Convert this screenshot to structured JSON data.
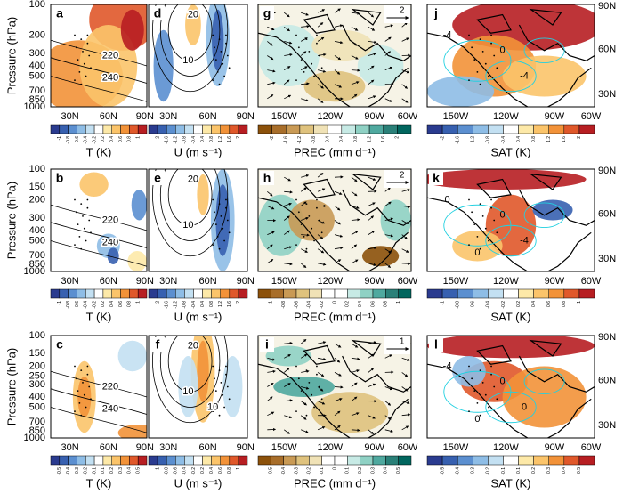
{
  "figure": {
    "y_axis_label": "Pressure (hPa)",
    "lat_ticks": [
      "30N",
      "60N",
      "90N"
    ],
    "lon_ticks": [
      "150W",
      "120W",
      "90W",
      "60W"
    ],
    "map_lat_ticks": [
      "90N",
      "60N",
      "30N"
    ],
    "rows": [
      {
        "pressure_ticks": [
          100,
          200,
          300,
          400,
          500,
          700,
          850,
          1000
        ],
        "panels": [
          {
            "letter": "a",
            "labels": [
              "220",
              "240"
            ]
          },
          {
            "letter": "d",
            "labels": [
              "20",
              "10"
            ]
          },
          {
            "letter": "g",
            "labels": [
              "2"
            ]
          },
          {
            "letter": "j",
            "labels": [
              "-4",
              "0",
              "-4"
            ]
          }
        ],
        "colorbars": [
          {
            "title": "T (K)",
            "ticks": [
              -1,
              -0.8,
              -0.6,
              -0.4,
              -0.2,
              0.2,
              0.4,
              0.6,
              0.8,
              1
            ]
          },
          {
            "title": "U (m s⁻¹)",
            "ticks": [
              -2,
              -1.6,
              -1.2,
              -0.8,
              -0.4,
              0.4,
              0.8,
              1.2,
              1.6,
              2
            ]
          },
          {
            "title": "PREC (mm d⁻¹)",
            "ticks": [
              -2,
              -1.6,
              -1.2,
              -0.8,
              -0.4,
              0.4,
              0.8,
              1.2,
              1.6,
              2
            ]
          },
          {
            "title": "SAT (K)",
            "ticks": [
              -2,
              -1.6,
              -1.2,
              -0.8,
              -0.4,
              0.4,
              0.8,
              1.2,
              1.6,
              2
            ]
          }
        ]
      },
      {
        "pressure_ticks": [
          100,
          150,
          200,
          300,
          400,
          500,
          700,
          850,
          1000
        ],
        "panels": [
          {
            "letter": "b",
            "labels": [
              "220",
              "240"
            ]
          },
          {
            "letter": "e",
            "labels": [
              "20",
              "10"
            ]
          },
          {
            "letter": "h",
            "labels": [
              "2"
            ]
          },
          {
            "letter": "k",
            "labels": [
              "0",
              "0",
              "-4",
              "0"
            ]
          }
        ],
        "colorbars": [
          {
            "title": "T (K)",
            "ticks": [
              -1,
              -0.8,
              -0.6,
              -0.4,
              -0.2,
              0.2,
              0.4,
              0.6,
              0.8,
              1
            ]
          },
          {
            "title": "U (m s⁻¹)",
            "ticks": [
              -2,
              -1.6,
              -1.2,
              -0.8,
              -0.4,
              0.4,
              0.8,
              1.2,
              1.6,
              2
            ]
          },
          {
            "title": "PREC (mm d⁻¹)",
            "ticks": [
              -1,
              -0.8,
              -0.6,
              -0.4,
              -0.2,
              0,
              0.2,
              0.4,
              0.6,
              0.8,
              1
            ]
          },
          {
            "title": "SAT (K)",
            "ticks": [
              -1,
              -0.8,
              -0.6,
              -0.4,
              -0.2,
              0.2,
              0.4,
              0.6,
              0.8,
              1
            ]
          }
        ]
      },
      {
        "pressure_ticks": [
          100,
          150,
          200,
          250,
          300,
          400,
          500,
          700,
          850,
          1000
        ],
        "panels": [
          {
            "letter": "c",
            "labels": [
              "220",
              "240"
            ]
          },
          {
            "letter": "f",
            "labels": [
              "20",
              "10",
              "10"
            ]
          },
          {
            "letter": "i",
            "labels": [
              "1"
            ]
          },
          {
            "letter": "l",
            "labels": [
              "-4",
              "0",
              "0",
              "0"
            ]
          }
        ],
        "colorbars": [
          {
            "title": "T (K)",
            "ticks": [
              -0.5,
              -0.4,
              -0.3,
              -0.2,
              -0.1,
              0.1,
              0.2,
              0.3,
              0.4,
              0.5
            ]
          },
          {
            "title": "U (m s⁻¹)",
            "ticks": [
              -1,
              -0.8,
              -0.6,
              -0.4,
              -0.2,
              0.2,
              0.4,
              0.6,
              0.8,
              1
            ]
          },
          {
            "title": "PREC (mm d⁻¹)",
            "ticks": [
              -0.5,
              -0.4,
              -0.3,
              -0.2,
              -0.1,
              0,
              0.1,
              0.2,
              0.3,
              0.4,
              0.5
            ]
          },
          {
            "title": "SAT (K)",
            "ticks": [
              -0.5,
              -0.4,
              -0.3,
              -0.2,
              -0.1,
              0.1,
              0.2,
              0.3,
              0.4,
              0.5
            ]
          }
        ]
      }
    ]
  }
}
